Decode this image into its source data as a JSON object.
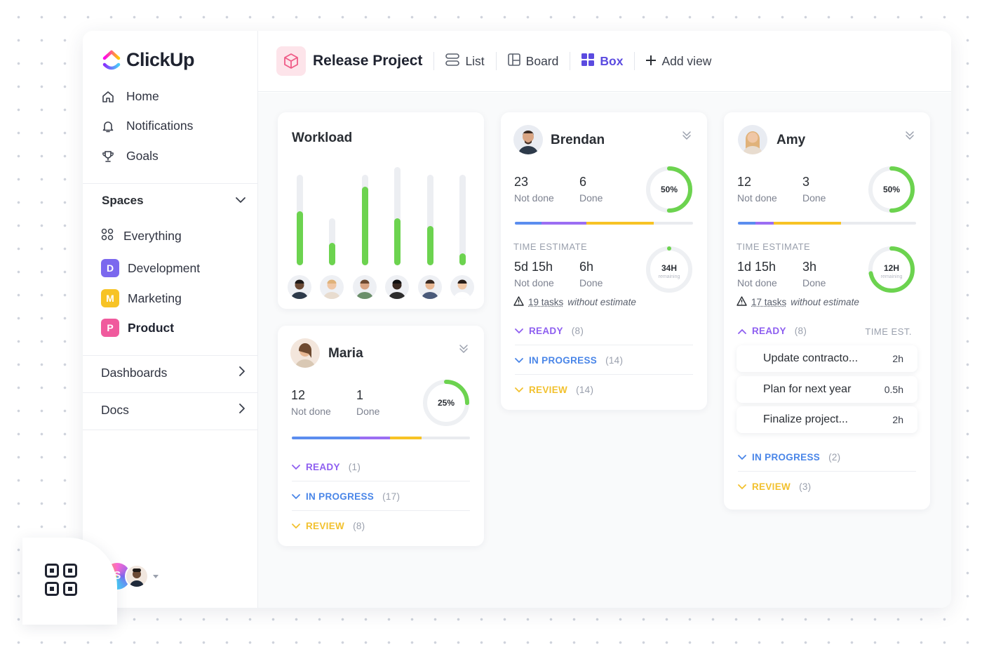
{
  "brand": {
    "name": "ClickUp"
  },
  "sidebar": {
    "nav": [
      {
        "label": "Home",
        "icon": "home-icon"
      },
      {
        "label": "Notifications",
        "icon": "bell-icon"
      },
      {
        "label": "Goals",
        "icon": "trophy-icon"
      }
    ],
    "spaces_title": "Spaces",
    "spaces": [
      {
        "label": "Everything",
        "badge": "",
        "color": ""
      },
      {
        "label": "Development",
        "badge": "D",
        "color": "#7b68ee"
      },
      {
        "label": "Marketing",
        "badge": "M",
        "color": "#f7c325"
      },
      {
        "label": "Product",
        "badge": "P",
        "color": "#f05a9d"
      }
    ],
    "dashboards_label": "Dashboards",
    "docs_label": "Docs",
    "user_initial": "S"
  },
  "header": {
    "project_title": "Release Project",
    "views": [
      {
        "label": "List",
        "icon": "list-icon",
        "active": false
      },
      {
        "label": "Board",
        "icon": "board-icon",
        "active": false
      },
      {
        "label": "Box",
        "icon": "box-icon",
        "active": true
      }
    ],
    "add_view_label": "Add view"
  },
  "workload": {
    "title": "Workload",
    "bars": [
      {
        "total": 0.92,
        "done": 0.55
      },
      {
        "total": 0.48,
        "done": 0.23
      },
      {
        "total": 0.92,
        "done": 0.8
      },
      {
        "total": 1.0,
        "done": 0.48
      },
      {
        "total": 0.92,
        "done": 0.4
      },
      {
        "total": 0.92,
        "done": 0.12
      }
    ]
  },
  "maria": {
    "name": "Maria",
    "not_done": "12",
    "not_done_label": "Not done",
    "done": "1",
    "done_label": "Done",
    "percent": "25%",
    "percent_value": 0.25,
    "progress": [
      {
        "color": "#5b8def",
        "pct": 0.38
      },
      {
        "color": "#9b6ef3",
        "pct": 0.17
      },
      {
        "color": "#f7c325",
        "pct": 0.18
      }
    ],
    "statuses": [
      {
        "label": "READY",
        "count": "(1)",
        "color": "#8e5ff0"
      },
      {
        "label": "IN PROGRESS",
        "count": "(17)",
        "color": "#4a86e8"
      },
      {
        "label": "REVIEW",
        "count": "(8)",
        "color": "#f2c12e"
      }
    ]
  },
  "brendan": {
    "name": "Brendan",
    "not_done": "23",
    "not_done_label": "Not done",
    "done": "6",
    "done_label": "Done",
    "percent": "50%",
    "percent_value": 0.5,
    "progress": [
      {
        "color": "#5b8def",
        "pct": 0.15
      },
      {
        "color": "#9b6ef3",
        "pct": 0.25
      },
      {
        "color": "#f7c325",
        "pct": 0.38
      }
    ],
    "time_estimate_label": "TIME ESTIMATE",
    "time_not_done": "5d 15h",
    "time_done": "6h",
    "remaining": "34H",
    "remaining_label": "remaining",
    "remaining_value": 0.0,
    "tasks_link": "19 tasks",
    "without_estimate": "without estimate",
    "statuses": [
      {
        "label": "READY",
        "count": "(8)",
        "color": "#8e5ff0"
      },
      {
        "label": "IN PROGRESS",
        "count": "(14)",
        "color": "#4a86e8"
      },
      {
        "label": "REVIEW",
        "count": "(14)",
        "color": "#f2c12e"
      }
    ]
  },
  "amy": {
    "name": "Amy",
    "not_done": "12",
    "not_done_label": "Not done",
    "done": "3",
    "done_label": "Done",
    "percent": "50%",
    "percent_value": 0.5,
    "progress": [
      {
        "color": "#5b8def",
        "pct": 0.1
      },
      {
        "color": "#9b6ef3",
        "pct": 0.1
      },
      {
        "color": "#f7c325",
        "pct": 0.38
      }
    ],
    "time_estimate_label": "TIME ESTIMATE",
    "time_not_done": "1d 15h",
    "time_done": "3h",
    "remaining": "12H",
    "remaining_label": "remaining",
    "remaining_value": 0.72,
    "tasks_link": "17 tasks",
    "without_estimate": "without estimate",
    "ready_label": "READY",
    "ready_count": "(8)",
    "time_est_header": "TIME EST.",
    "tasks": [
      {
        "name": "Update contracto...",
        "est": "2h"
      },
      {
        "name": "Plan for next year",
        "est": "0.5h"
      },
      {
        "name": "Finalize project...",
        "est": "2h"
      }
    ],
    "statuses": [
      {
        "label": "IN PROGRESS",
        "count": "(2)",
        "color": "#4a86e8"
      },
      {
        "label": "REVIEW",
        "count": "(3)",
        "color": "#f2c12e"
      }
    ]
  }
}
